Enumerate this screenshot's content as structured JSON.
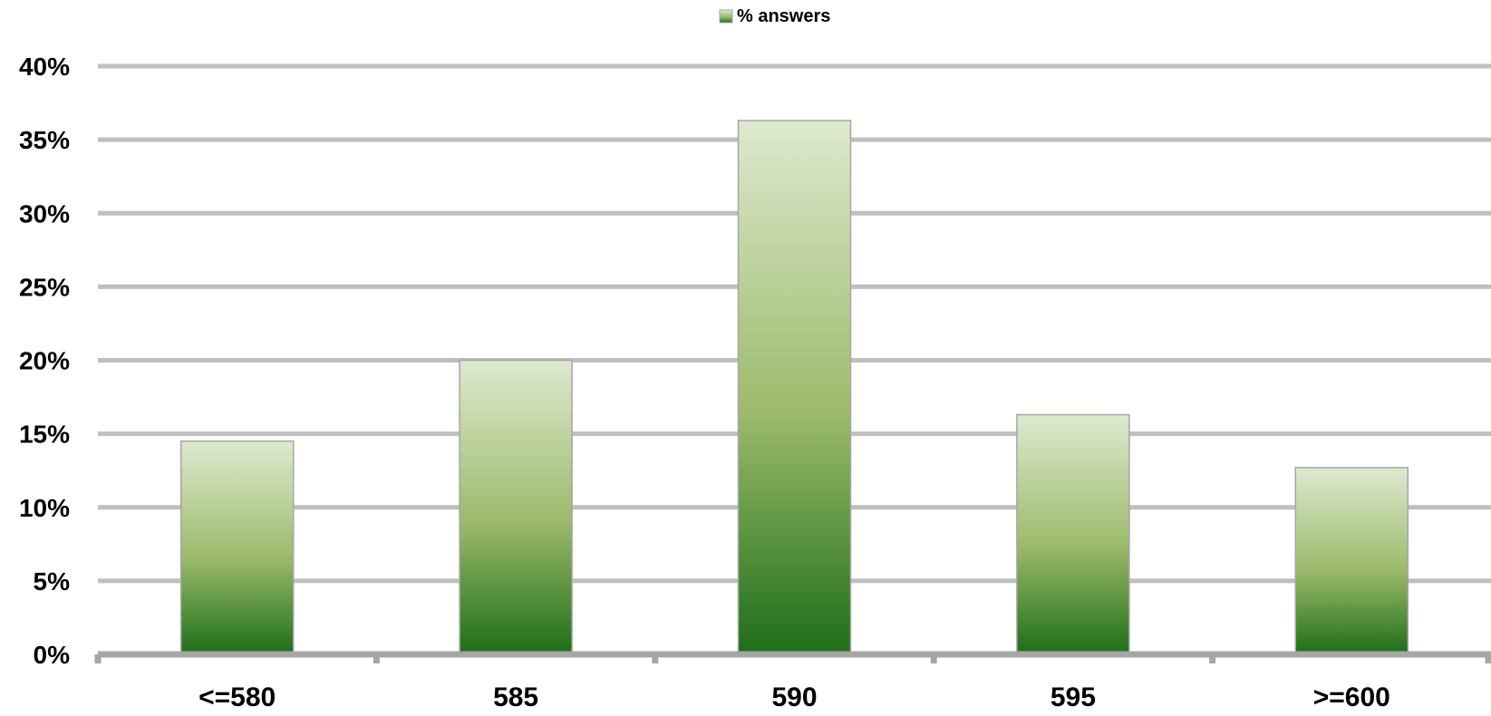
{
  "chart_data": {
    "type": "bar",
    "categories": [
      "<=580",
      "585",
      "590",
      "595",
      ">=600"
    ],
    "series": [
      {
        "name": "% answers",
        "values": [
          14.5,
          20.0,
          36.3,
          16.3,
          12.7
        ]
      }
    ],
    "ylim": [
      0,
      40
    ],
    "yticks": [
      0,
      5,
      10,
      15,
      20,
      25,
      30,
      35,
      40
    ],
    "ytick_labels": [
      "0%",
      "5%",
      "10%",
      "15%",
      "20%",
      "25%",
      "30%",
      "35%",
      "40%"
    ],
    "legend": {
      "position": "top-center",
      "label": "% answers"
    },
    "grid": true,
    "colors": {
      "bar_top": "#dde9cf",
      "bar_mid": "#9bba6a",
      "bar_bottom": "#1e6e18",
      "bar_border": "#a6a6a6",
      "grid": "#bfbfbf",
      "axis": "#a6a6a6"
    }
  }
}
